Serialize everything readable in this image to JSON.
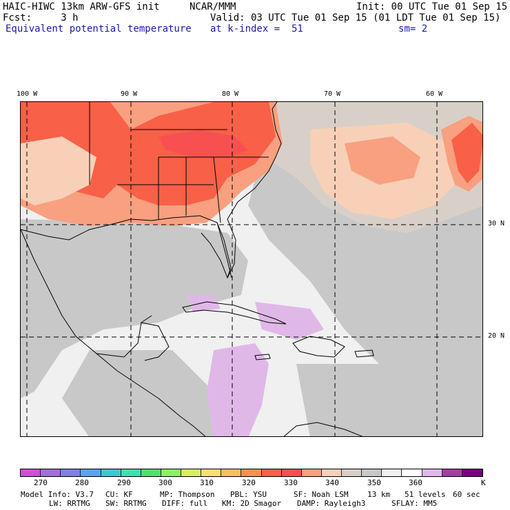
{
  "header": {
    "line1_left": "HAIC-HIWC 13km ARW-GFS init",
    "line1_mid": "NCAR/MMM",
    "line1_right": "Init: 00 UTC Tue 01 Sep 15",
    "line2_left": "Fcst:     3 h",
    "line2_right": "Valid: 03 UTC Tue 01 Sep 15 (01 LDT Tue 01 Sep 15)",
    "line3_left": "Equivalent potential temperature",
    "line3_mid": "at k-index =  51",
    "line3_right": "sm= 2"
  },
  "map": {
    "lon_labels": [
      "100 W",
      "90 W",
      "80 W",
      "70 W",
      "60 W"
    ],
    "lat_labels": [
      "30 N",
      "20 N"
    ]
  },
  "colorbar": {
    "colors": [
      "#d050d0",
      "#a070d0",
      "#8080e0",
      "#60a0f0",
      "#40c8d0",
      "#40e0b0",
      "#50e070",
      "#90f060",
      "#d8f060",
      "#f8e070",
      "#f8c060",
      "#f89050",
      "#f86048",
      "#f85050",
      "#f8a080",
      "#f8d0b8",
      "#d8d0c8",
      "#c8c8c8",
      "#f0f0f0",
      "#ffffff",
      "#e0b8e8",
      "#a040a0",
      "#780078"
    ],
    "labels": [
      "270",
      "280",
      "290",
      "300",
      "310",
      "320",
      "330",
      "340",
      "350",
      "360"
    ],
    "unit": "K"
  },
  "model_info": {
    "row1": [
      "Model Info: V3.7",
      "CU: KF",
      "MP: Thompson",
      "PBL: YSU",
      "SF: Noah LSM",
      "13 km",
      "51 levels",
      "60 sec"
    ],
    "row2": [
      "LW: RRTMG",
      "SW: RRTMG",
      "DIFF: full",
      "KM: 2D Smagor",
      "DAMP: Rayleigh3",
      "SFLAY: MM5"
    ]
  }
}
